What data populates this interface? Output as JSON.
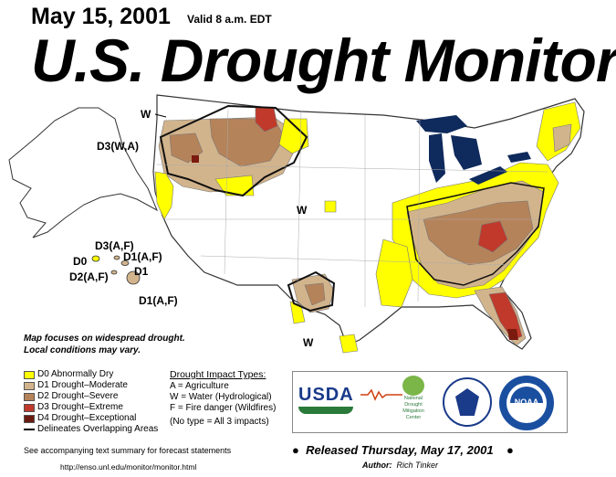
{
  "header": {
    "date": "May 15, 2001",
    "valid": "Valid 8 a.m. EDT",
    "title": "U.S. Drought Monitor"
  },
  "map_labels": {
    "w_northwest": "W",
    "d3_northwest": "D3(W,A)",
    "w_central": "W",
    "w_texas": "W",
    "hawaii_d3": "D3(A,F)",
    "hawaii_d0": "D0",
    "hawaii_d1_a": "D1(A,F)",
    "hawaii_d2": "D2(A,F)",
    "hawaii_d1_b": "D1",
    "hawaii_d1_c": "D1(A,F)"
  },
  "note": {
    "line1": "Map focuses on widespread drought.",
    "line2": "Local conditions may vary."
  },
  "legend": {
    "items": [
      {
        "label": "D0 Abnormally Dry",
        "color": "#ffff00"
      },
      {
        "label": "D1 Drought–Moderate",
        "color": "#fcd37f"
      },
      {
        "label": "D2 Drought–Severe",
        "color": "#ffaa00"
      },
      {
        "label": "D3 Drought–Extreme",
        "color": "#e60000"
      },
      {
        "label": "D4 Drought–Exceptional",
        "color": "#730000"
      }
    ],
    "overlap": "Delineates Overlapping Areas"
  },
  "impact": {
    "heading": "Drought Impact Types:",
    "a": "A = Agriculture",
    "w": "W = Water (Hydrological)",
    "f": "F = Fire danger (Wildfires)",
    "none": "(No type = All 3 impacts)"
  },
  "logos": {
    "usda": "USDA",
    "ndmc_line1": "National",
    "ndmc_line2": "Drought",
    "ndmc_line3": "Mitigation",
    "ndmc_line4": "Center",
    "noaa": "NOAA"
  },
  "footer": {
    "summary": "See accompanying text summary for forecast statements",
    "url": "http://enso.unl.edu/monitor/monitor.html",
    "released": "Released Thursday, May 17, 2001",
    "author_label": "Author:",
    "author_name": "Rich Tinker"
  }
}
